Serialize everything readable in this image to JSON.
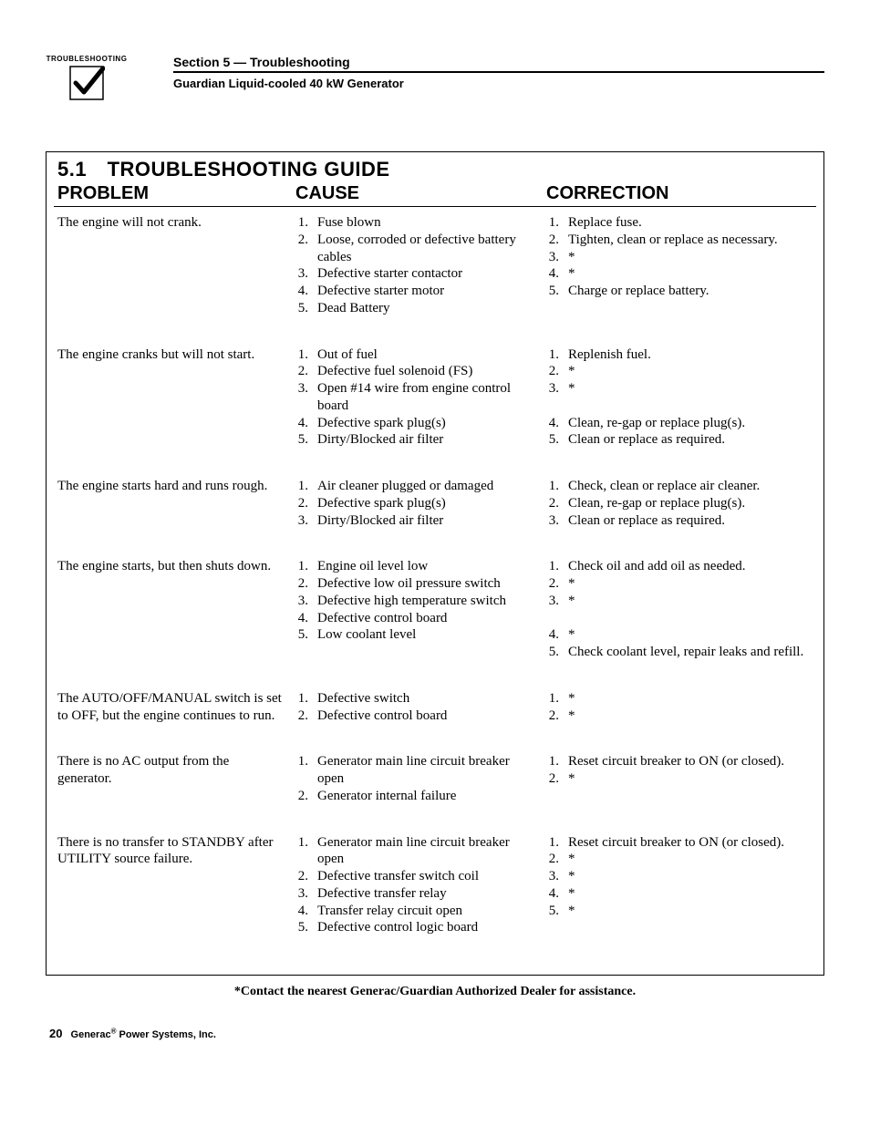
{
  "header": {
    "icon_label": "TROUBLESHOOTING",
    "section_title": "Section 5 — Troubleshooting",
    "subtitle": "Guardian Liquid-cooled 40 kW Generator"
  },
  "guide": {
    "title": "5.1 TROUBLESHOOTING GUIDE",
    "columns": {
      "problem": "PROBLEM",
      "cause": "CAUSE",
      "correction": "CORRECTION"
    },
    "rows": [
      {
        "problem": "The engine will not crank.",
        "causes": [
          "Fuse blown",
          "Loose, corroded or defective battery cables",
          "Defective starter contactor",
          "Defective starter motor",
          "Dead Battery"
        ],
        "corrections": [
          "Replace fuse.",
          "Tighten, clean or replace as necessary.",
          "*",
          "*",
          "Charge or replace battery."
        ]
      },
      {
        "problem": "The engine cranks but will not start.",
        "causes": [
          "Out of fuel",
          "Defective fuel solenoid (FS)",
          "Open #14 wire from engine control board",
          "Defective spark plug(s)",
          "Dirty/Blocked air filter"
        ],
        "corrections": [
          "Replenish fuel.",
          "*",
          "*",
          "Clean, re-gap or replace plug(s).",
          "Clean or replace as required."
        ],
        "correction_align": [
          0,
          0,
          0,
          3,
          4
        ]
      },
      {
        "problem": "The engine starts hard and runs rough.",
        "causes": [
          "Air cleaner plugged or damaged",
          "Defective spark plug(s)",
          "Dirty/Blocked air filter"
        ],
        "corrections": [
          "Check, clean or replace air cleaner.",
          "Clean, re-gap or replace plug(s).",
          "Clean or replace as required."
        ],
        "correction_align": [
          0,
          1,
          2
        ]
      },
      {
        "problem": "The engine starts, but then shuts down.",
        "causes": [
          "Engine oil level low",
          "Defective low oil pressure switch",
          "Defective high temperature switch",
          "Defective control board",
          "Low coolant level"
        ],
        "corrections": [
          "Check oil and add oil as needed.",
          "*",
          "*",
          "*",
          "Check coolant level, repair leaks and refill."
        ],
        "correction_align": [
          0,
          1,
          2,
          3,
          4
        ]
      },
      {
        "problem": "The AUTO/OFF/MANUAL switch is set to OFF, but the engine continues to run.",
        "causes": [
          "Defective switch",
          "Defective control board"
        ],
        "corrections": [
          "*",
          "*"
        ]
      },
      {
        "problem": "There is no AC output from the generator.",
        "causes": [
          "Generator main line circuit breaker open",
          "Generator internal failure"
        ],
        "corrections": [
          "Reset circuit breaker to ON (or closed).",
          "*"
        ],
        "correction_align": [
          0,
          1
        ]
      },
      {
        "problem": "There is no transfer to STANDBY after UTILITY source failure.",
        "causes": [
          "Generator main line circuit breaker open",
          "Defective transfer switch coil",
          "Defective transfer relay",
          "Transfer relay circuit open",
          "Defective control logic board"
        ],
        "corrections": [
          "Reset circuit breaker to ON (or closed).",
          "*",
          "*",
          "*",
          "*"
        ],
        "correction_align": [
          0,
          1,
          2,
          3,
          4
        ]
      }
    ],
    "footnote": "*Contact the nearest Generac/Guardian Authorized Dealer for assistance."
  },
  "footer": {
    "page_number": "20",
    "company": "Generac",
    "suffix": " Power Systems, Inc."
  }
}
